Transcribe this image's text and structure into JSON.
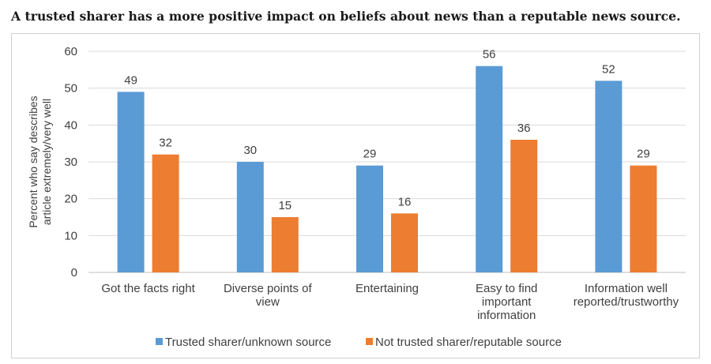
{
  "title": "A trusted sharer has a more positive impact on beliefs about news than a reputable news source.",
  "chart_data": {
    "type": "bar",
    "categories": [
      [
        "Got the facts right"
      ],
      [
        "Diverse points of",
        "view"
      ],
      [
        "Entertaining"
      ],
      [
        "Easy to find",
        "important",
        "information"
      ],
      [
        "Information well",
        "reported/trustworthy"
      ]
    ],
    "series": [
      {
        "name": "Trusted sharer/unknown source",
        "color": "#5b9bd5",
        "values": [
          49,
          30,
          29,
          56,
          52
        ]
      },
      {
        "name": "Not trusted sharer/reputable source",
        "color": "#ed7d31",
        "values": [
          32,
          15,
          16,
          36,
          29
        ]
      }
    ],
    "ylabel": [
      "Percent who say describes",
      "article extremely/very well"
    ],
    "ylim": [
      0,
      60
    ],
    "yticks": [
      0,
      10,
      20,
      30,
      40,
      50,
      60
    ],
    "grid": true,
    "legend_position": "bottom"
  }
}
